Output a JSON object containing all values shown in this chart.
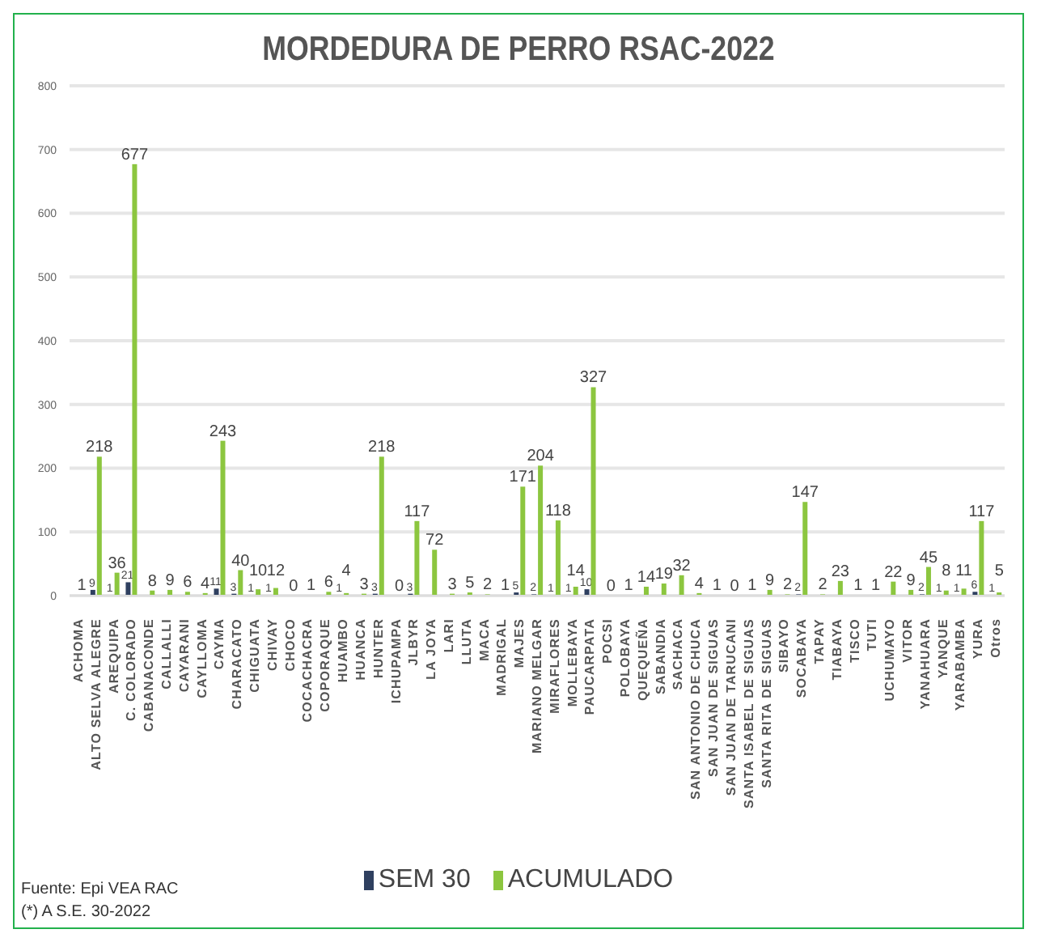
{
  "chart_data": {
    "type": "bar",
    "title": "MORDEDURA DE PERRO RSAC-2022",
    "categories": [
      "ACHOMA",
      "ALTO SELVA ALEGRE",
      "AREQUIPA",
      "C. COLORADO",
      "CABANACONDE",
      "CALLALLI",
      "CAYARANI",
      "CAYLLOMA",
      "CAYMA",
      "CHARACATO",
      "CHIGUATA",
      "CHIVAY",
      "CHOCO",
      "COCACHACRA",
      "COPORAQUE",
      "HUAMBO",
      "HUANCA",
      "HUNTER",
      "ICHUPAMPA",
      "JLBYR",
      "LA JOYA",
      "LARI",
      "LLUTA",
      "MACA",
      "MADRIGAL",
      "MAJES",
      "MARIANO MELGAR",
      "MIRAFLORES",
      "MOLLEBAYA",
      "PAUCARPATA",
      "POCSI",
      "POLOBAYA",
      "QUEQUEÑA",
      "SABANDIA",
      "SACHACA",
      "SAN ANTONIO DE CHUCA",
      "SAN JUAN DE SIGUAS",
      "SAN JUAN DE TARUCANI",
      "SANTA ISABEL DE SIGUAS",
      "SANTA RITA DE SIGUAS",
      "SIBAYO",
      "SOCABAYA",
      "TAPAY",
      "TIABAYA",
      "TISCO",
      "TUTI",
      "UCHUMAYO",
      "VITOR",
      "YANAHUARA",
      "YANQUE",
      "YARABAMBA",
      "YURA",
      "Otros"
    ],
    "series": [
      {
        "name": "SEM 30",
        "color": "#2f4060",
        "values": [
          null,
          9,
          1,
          21,
          null,
          null,
          null,
          null,
          11,
          3,
          1,
          1,
          null,
          null,
          null,
          1,
          null,
          3,
          null,
          3,
          null,
          null,
          null,
          null,
          null,
          5,
          2,
          1,
          1,
          10,
          null,
          null,
          null,
          null,
          null,
          null,
          null,
          null,
          null,
          null,
          null,
          2,
          null,
          null,
          null,
          null,
          null,
          null,
          2,
          1,
          1,
          6,
          1
        ]
      },
      {
        "name": "ACUMULADO",
        "color": "#8cc63f",
        "values": [
          1,
          218,
          36,
          677,
          8,
          9,
          6,
          4,
          243,
          40,
          10,
          12,
          0,
          1,
          6,
          4,
          3,
          218,
          0,
          117,
          72,
          3,
          5,
          2,
          1,
          171,
          204,
          118,
          14,
          327,
          0,
          1,
          14,
          19,
          32,
          4,
          1,
          0,
          1,
          9,
          2,
          147,
          2,
          23,
          1,
          1,
          22,
          9,
          45,
          8,
          11,
          117,
          5
        ]
      }
    ],
    "ylim": [
      0,
      800
    ],
    "yticks": [
      0,
      100,
      200,
      300,
      400,
      500,
      600,
      700,
      800
    ],
    "grid": "y",
    "legend": "bottom",
    "data_labels": true,
    "annotations": [
      "Fuente: Epi VEA RAC",
      "(*) A S.E. 30-2022"
    ]
  }
}
